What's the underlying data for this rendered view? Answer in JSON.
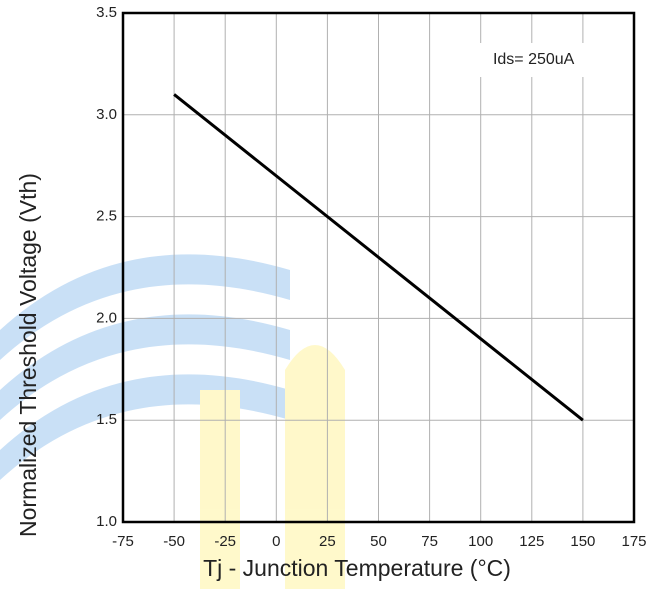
{
  "chart_data": {
    "type": "line",
    "xlabel": "Tj - Junction Temperature (°C)",
    "ylabel": "Normalized Threshold Voltage (Vth)",
    "annotation": "Ids= 250uA",
    "x": [
      -50,
      150
    ],
    "values": [
      3.1,
      1.5
    ],
    "color": "#000000",
    "xlim": [
      -75,
      175
    ],
    "xticks": [
      -75,
      -50,
      -25,
      0,
      25,
      50,
      75,
      100,
      125,
      150,
      175
    ],
    "ylim": [
      1.0,
      3.5
    ],
    "yticks": [
      {
        "value": 1.0,
        "label": "1.0"
      },
      1.5,
      {
        "value": 2.0,
        "label": "2.0"
      },
      2.5,
      {
        "value": 3.0,
        "label": "3.0"
      },
      3.5
    ],
    "grid": true
  }
}
